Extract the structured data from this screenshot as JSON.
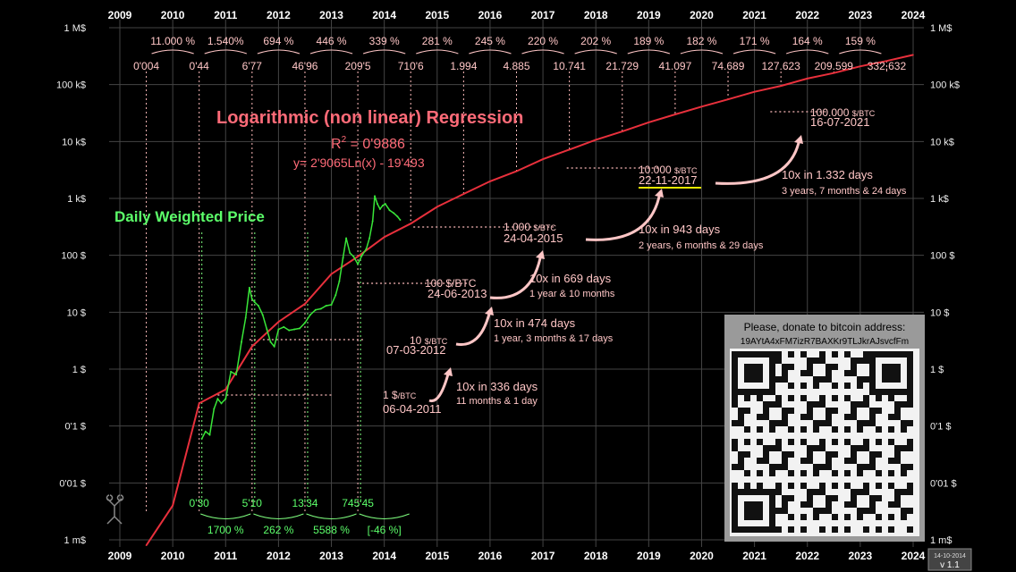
{
  "chart_data": {
    "type": "line",
    "title": "Logarithmic (non linear) Regression",
    "r_squared_label": "R",
    "r_squared_exp": "2",
    "r_squared_value": " = 0'9886",
    "equation": "y= 2'9065Ln(x) - 19'493",
    "series_label": "Daily Weighted Price",
    "x_years": [
      "2009",
      "2010",
      "2011",
      "2012",
      "2013",
      "2014",
      "2015",
      "2016",
      "2017",
      "2018",
      "2019",
      "2020",
      "2021",
      "2022",
      "2023",
      "2024"
    ],
    "y_ticks_left": [
      "1 M$",
      "100 k$",
      "10 k$",
      "1 k$",
      "100 $",
      "10 $",
      "1 $",
      "0'1 $",
      "0'01 $",
      "1 m$"
    ],
    "y_ticks_right": [
      "1 M$",
      "100 k$",
      "10 k$",
      "1 k$",
      "100 $",
      "10 $",
      "1 $",
      "0'1 $",
      "0'01 $",
      "1 m$"
    ],
    "y_scale": "log",
    "ylim": [
      0.001,
      1000000
    ],
    "xlim": [
      2009,
      2024
    ],
    "legend": "none",
    "regression_series": {
      "name": "Logarithmic (non linear) Regression",
      "x": [
        2009.5,
        2010.0,
        2010.5,
        2011.0,
        2011.5,
        2012.0,
        2012.5,
        2013.0,
        2013.5,
        2014.0,
        2014.5,
        2015.0,
        2015.5,
        2016.0,
        2016.5,
        2017.0,
        2017.5,
        2018.0,
        2018.5,
        2019.0,
        2019.5,
        2020.0,
        2020.5,
        2021.0,
        2021.5,
        2022.0,
        2022.5,
        2023.0,
        2023.5,
        2024.0
      ],
      "y": [
        0.0008,
        0.004,
        0.25,
        0.44,
        2.5,
        6.77,
        14,
        46.96,
        95,
        209.5,
        360,
        710.6,
        1200,
        1994,
        3000,
        4885,
        7200,
        10741,
        15000,
        21729,
        30000,
        41097,
        55000,
        74689,
        95000,
        127623,
        160000,
        209599,
        260000,
        332632
      ]
    },
    "price_series": {
      "name": "Daily Weighted Price",
      "x": [
        2010.55,
        2010.62,
        2010.7,
        2010.78,
        2010.85,
        2010.92,
        2011.0,
        2011.1,
        2011.2,
        2011.3,
        2011.38,
        2011.45,
        2011.5,
        2011.55,
        2011.62,
        2011.7,
        2011.78,
        2011.85,
        2011.92,
        2012.0,
        2012.1,
        2012.2,
        2012.3,
        2012.4,
        2012.5,
        2012.6,
        2012.7,
        2012.8,
        2012.9,
        2013.0,
        2013.08,
        2013.15,
        2013.22,
        2013.28,
        2013.35,
        2013.42,
        2013.5,
        2013.58,
        2013.66,
        2013.72,
        2013.78,
        2013.82,
        2013.87,
        2013.92,
        2013.97,
        2014.02,
        2014.1,
        2014.18,
        2014.25,
        2014.3
      ],
      "y": [
        0.06,
        0.08,
        0.07,
        0.2,
        0.3,
        0.25,
        0.3,
        0.9,
        0.8,
        3.0,
        8.0,
        27.0,
        17.0,
        15.0,
        13.0,
        9.0,
        5.0,
        3.0,
        2.5,
        5.0,
        5.5,
        4.8,
        5.0,
        5.2,
        6.5,
        9.0,
        11.0,
        11.5,
        13.0,
        13.5,
        20.0,
        35.0,
        90.0,
        200.0,
        110.0,
        95.0,
        70.0,
        100.0,
        130.0,
        200.0,
        400.0,
        1100.0,
        800.0,
        650.0,
        750.0,
        800.0,
        620.0,
        550.0,
        480.0,
        420.0
      ]
    },
    "ratio_labels": [
      "11.000 %",
      "1.540%",
      "694 %",
      "446 %",
      "339 %",
      "281 %",
      "245 %",
      "220 %",
      "202 %",
      "189 %",
      "182 %",
      "171 %",
      "164 %",
      "159 %"
    ],
    "regression_year_values": [
      "0'004",
      "0'44",
      "6'77",
      "46'96",
      "209'5",
      "710'6",
      "1.994",
      "4.885",
      "10.741",
      "21.729",
      "41.097",
      "74.689",
      "127.623",
      "209.599",
      "332.632"
    ],
    "bottom_price_values": [
      "0'30",
      "5'10",
      "13'34",
      "745'45"
    ],
    "bottom_growth_labels": [
      "1700 %",
      "262 %",
      "5588 %",
      "[-46 %]"
    ],
    "milestones": [
      {
        "price": "1 $",
        "unit": "/BTC",
        "date": "06-04-2011"
      },
      {
        "price": "10 ",
        "unit": "$/BTC",
        "date": "07-03-2012"
      },
      {
        "price": "100 $/BTC",
        "unit": "",
        "date": "24-06-2013"
      },
      {
        "price": "1.000 ",
        "unit": "$/BTC",
        "date": "24-04-2015"
      },
      {
        "price": "10.000 ",
        "unit": "$/BTC",
        "date": "22-11-2017"
      },
      {
        "price": "100.000 ",
        "unit": "$/BTC",
        "date": "16-07-2021"
      }
    ],
    "intervals": [
      {
        "title": "10x in 336 days",
        "detail": "11 months & 1 day"
      },
      {
        "title": "10x in 474 days",
        "detail": "1 year, 3 months & 17 days"
      },
      {
        "title": "10x in 669 days",
        "detail": "1 year & 10 months"
      },
      {
        "title": "10x in 943 days",
        "detail": "2 years, 6 months & 29 days"
      },
      {
        "title": "10x  in 1.332 days",
        "detail": "3 years, 7 months & 24 days"
      }
    ],
    "donate": {
      "title": "Please, donate to bitcoin address:",
      "address": "19AYtA4xFM7izR7BAXKr9TLJkrAJsvcfFm"
    },
    "version": {
      "date": "14-10-2014",
      "label": "v 1.1"
    }
  },
  "colors": {
    "background": "#000000",
    "regression": "#e8303c",
    "price": "#39e639",
    "annotation_pink": "#ffc6c6",
    "grid": "#555555",
    "highlight_underline": "#e8e800"
  }
}
